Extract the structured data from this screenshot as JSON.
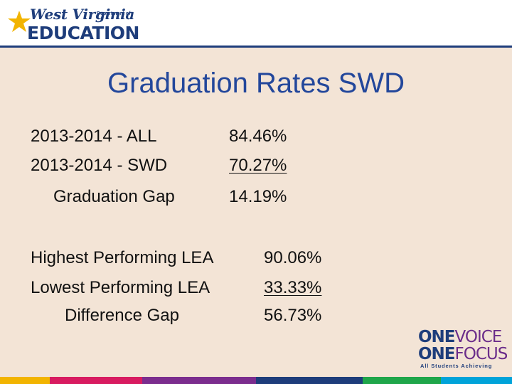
{
  "header": {
    "logo_state": "West Virginia",
    "logo_dept": "Department of",
    "logo_org": "EDUCATION"
  },
  "slide": {
    "title": "Graduation Rates SWD",
    "rows1": [
      {
        "label": "2013-2014  - ALL",
        "value": "84.46%"
      },
      {
        "label": "2013-2014  - SWD",
        "value": "70.27%"
      }
    ],
    "gap1": {
      "label": "Graduation Gap",
      "value": "14.19%"
    },
    "rows2": [
      {
        "label": "Highest Performing LEA",
        "value": "90.06%"
      },
      {
        "label": "Lowest Performing LEA",
        "value": "33.33%"
      }
    ],
    "gap2": {
      "label": "Difference Gap",
      "value": "56.73%"
    }
  },
  "brand": {
    "one_a": "ONE",
    "word_a": "VOICE",
    "one_b": "ONE",
    "word_b": "FOCUS",
    "tagline": "All Students Achieving"
  },
  "colors": {
    "background": "#f3e4d6",
    "title": "#23479b",
    "navy": "#1e3d7b",
    "gold": "#f2b400",
    "footer_segments": [
      "#f2b400",
      "#d81b60",
      "#7b2d8e",
      "#1e3d7b",
      "#1fa64a",
      "#00a3d9"
    ]
  }
}
